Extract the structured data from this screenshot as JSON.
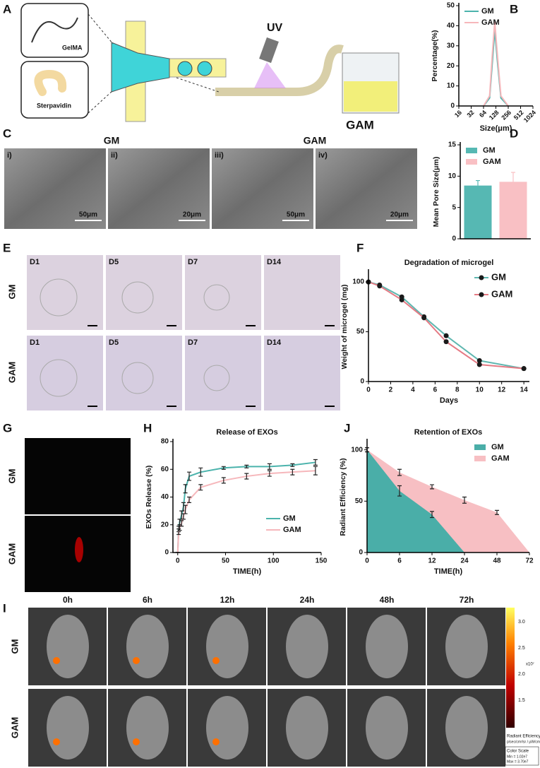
{
  "panel_labels": [
    "A",
    "B",
    "C",
    "D",
    "E",
    "F",
    "G",
    "H",
    "J",
    "I"
  ],
  "schematic": {
    "gelma": "GelMA",
    "streptavidin": "Sterpavidin",
    "uv": "UV",
    "product": "GAM"
  },
  "sem": {
    "groups": [
      "GM",
      "GAM"
    ],
    "images": [
      {
        "label": "i)",
        "scale": "50μm"
      },
      {
        "label": "ii)",
        "scale": "20μm"
      },
      {
        "label": "iii)",
        "scale": "50μm"
      },
      {
        "label": "iv)",
        "scale": "20μm"
      }
    ]
  },
  "degradation_images": {
    "rows": [
      "GM",
      "GAM"
    ],
    "days": [
      [
        "D1",
        "D5",
        "D7",
        "D14"
      ],
      [
        "D1",
        "D5",
        "D7",
        "D14"
      ]
    ]
  },
  "confocal": {
    "rows": [
      "GM",
      "GAM"
    ]
  },
  "imaging": {
    "times": [
      "0h",
      "6h",
      "12h",
      "24h",
      "48h",
      "72h"
    ],
    "rows": [
      "GM",
      "GAM"
    ],
    "colorbar": {
      "ticks": [
        "3.0",
        "2.5",
        "2.0",
        "1.5"
      ],
      "exponent": "x10⁷",
      "title": "Radiant Efficiency",
      "units": "p/sec/cm²/sr / μW/cm²",
      "scale_title": "Color Scale",
      "min": "Min = 1.02e7",
      "max": "Max = 3.70e7"
    }
  },
  "chart_data": [
    {
      "type": "line",
      "ylabel": "Percentage(%)",
      "xlabel": "Size(μm)",
      "xscale": "log",
      "xtick_rotation": 45,
      "x": [
        64,
        90,
        105,
        120,
        140,
        170,
        256
      ],
      "series": [
        {
          "name": "GM",
          "color": "#4bb3ac",
          "values": [
            0,
            4,
            22,
            38,
            22,
            4,
            0
          ]
        },
        {
          "name": "GAM",
          "color": "#f6b7bb",
          "values": [
            0,
            5,
            26,
            42,
            25,
            5,
            0
          ]
        }
      ],
      "xlim": [
        16,
        1024
      ],
      "xticks": [
        16,
        32,
        64,
        128,
        256,
        512,
        1024
      ],
      "ylim": [
        0,
        50
      ],
      "yticks": [
        0,
        10,
        20,
        30,
        40,
        50
      ],
      "legend": "upper left"
    },
    {
      "type": "bar",
      "ylabel": "Mean Pore Size(μm)",
      "series": [
        {
          "name": "GM",
          "color": "#56b8b3",
          "values": [
            8.5
          ],
          "errors": [
            0.8
          ]
        },
        {
          "name": "GAM",
          "color": "#f9c0c4",
          "values": [
            9.1
          ],
          "errors": [
            1.5
          ]
        }
      ],
      "ylim": [
        0,
        15
      ],
      "yticks": [
        0,
        5,
        10,
        15
      ],
      "legend": "upper left"
    },
    {
      "type": "line",
      "title": "Degradation of microgel",
      "ylabel": "Weight of microgel (mg)",
      "xlabel": "Days",
      "markers": true,
      "marker_color": "#1a1a1a",
      "x": [
        0,
        1,
        3,
        5,
        7,
        10,
        14
      ],
      "series": [
        {
          "name": "GM",
          "color": "#5fb7b0",
          "values": [
            100,
            97,
            85,
            65,
            46,
            21,
            13
          ]
        },
        {
          "name": "GAM",
          "color": "#e57a84",
          "values": [
            100,
            96,
            82,
            64,
            40,
            17,
            13
          ]
        }
      ],
      "xlim": [
        0,
        14.5
      ],
      "xticks": [
        0,
        2,
        4,
        6,
        8,
        10,
        12,
        14
      ],
      "ylim": [
        0,
        110
      ],
      "yticks": [
        0,
        50,
        100
      ],
      "legend": "upper right"
    },
    {
      "type": "line",
      "title": "Release of EXOs",
      "ylabel": "EXOs Release (%)",
      "xlabel": "TIME(h)",
      "x": [
        0,
        1,
        2,
        4,
        6,
        8,
        12,
        24,
        48,
        72,
        96,
        120,
        144
      ],
      "series": [
        {
          "name": "GM",
          "color": "#4bb3ac",
          "values": [
            0,
            17,
            22,
            27,
            33,
            46,
            55,
            58,
            61,
            62,
            62,
            63,
            65
          ],
          "errors": [
            0,
            2,
            2,
            3,
            3,
            3,
            3,
            3,
            1,
            1,
            2,
            1,
            2
          ]
        },
        {
          "name": "GAM",
          "color": "#f6b7bb",
          "values": [
            0,
            15,
            18,
            21,
            26,
            31,
            38,
            47,
            52,
            55,
            57,
            58,
            59
          ],
          "errors": [
            0,
            2,
            2,
            2,
            2,
            3,
            2,
            2,
            2,
            2,
            2,
            2,
            3
          ]
        }
      ],
      "xlim": [
        -5,
        150
      ],
      "xticks": [
        0,
        50,
        100,
        150
      ],
      "ylim": [
        0,
        80
      ],
      "yticks": [
        0,
        20,
        40,
        60,
        80
      ],
      "legend": "lower right"
    },
    {
      "type": "area",
      "title": "Retention of EXOs",
      "ylabel": "Radiant Efficiency (%)",
      "xlabel": "TIME(h)",
      "categories": [
        0,
        6,
        12,
        24,
        48,
        72
      ],
      "series": [
        {
          "name": "GM",
          "color": "#4aaea8",
          "values": [
            100,
            60,
            37,
            0,
            null,
            null
          ],
          "errors": [
            2,
            5,
            3,
            null,
            null,
            null
          ]
        },
        {
          "name": "GAM",
          "color": "#f7bfc3",
          "values": [
            100,
            78,
            64,
            51,
            39,
            0
          ],
          "errors": [
            2,
            3,
            2,
            3,
            2,
            null
          ]
        }
      ],
      "ylim": [
        0,
        108
      ],
      "yticks": [
        0,
        50,
        100
      ],
      "legend": "upper right"
    }
  ]
}
